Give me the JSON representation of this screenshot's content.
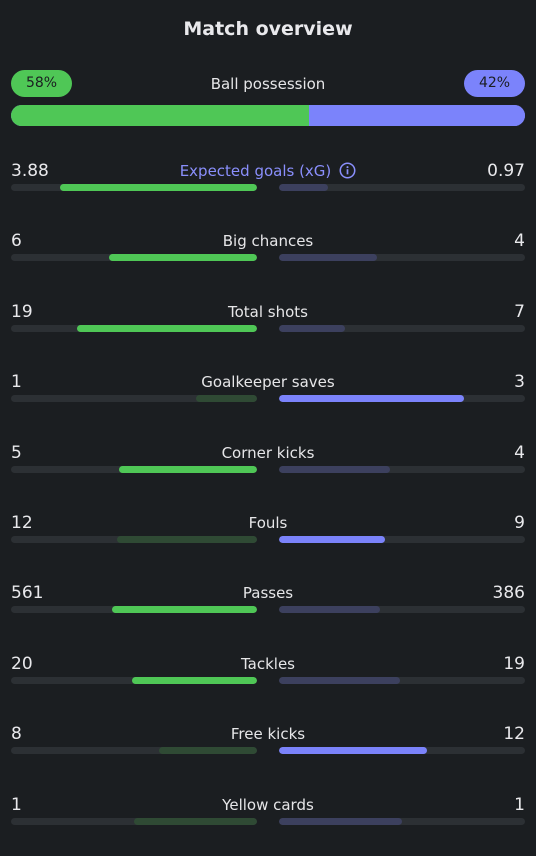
{
  "title": "Match overview",
  "colors": {
    "home": "#4fc756",
    "home_muted": "#2f4a34",
    "away": "#7b83fb",
    "away_muted": "#3c405e",
    "background": "#1b1e21",
    "track": "#2c3034"
  },
  "possession": {
    "label": "Ball possession",
    "home": "58%",
    "away": "42%",
    "home_pct": 58
  },
  "stats": [
    {
      "label": "Expected goals (xG)",
      "home": "3.88",
      "away": "0.97",
      "home_frac": 0.8,
      "away_frac": 0.2,
      "leader": "home",
      "info": true
    },
    {
      "label": "Big chances",
      "home": "6",
      "away": "4",
      "home_frac": 0.6,
      "away_frac": 0.4,
      "leader": "home"
    },
    {
      "label": "Total shots",
      "home": "19",
      "away": "7",
      "home_frac": 0.73,
      "away_frac": 0.27,
      "leader": "home"
    },
    {
      "label": "Goalkeeper saves",
      "home": "1",
      "away": "3",
      "home_frac": 0.25,
      "away_frac": 0.75,
      "leader": "away"
    },
    {
      "label": "Corner kicks",
      "home": "5",
      "away": "4",
      "home_frac": 0.56,
      "away_frac": 0.45,
      "leader": "home"
    },
    {
      "label": "Fouls",
      "home": "12",
      "away": "9",
      "home_frac": 0.57,
      "away_frac": 0.43,
      "leader": "away"
    },
    {
      "label": "Passes",
      "home": "561",
      "away": "386",
      "home_frac": 0.59,
      "away_frac": 0.41,
      "leader": "home"
    },
    {
      "label": "Tackles",
      "home": "20",
      "away": "19",
      "home_frac": 0.51,
      "away_frac": 0.49,
      "leader": "home"
    },
    {
      "label": "Free kicks",
      "home": "8",
      "away": "12",
      "home_frac": 0.4,
      "away_frac": 0.6,
      "leader": "away"
    },
    {
      "label": "Yellow cards",
      "home": "1",
      "away": "1",
      "home_frac": 0.5,
      "away_frac": 0.5,
      "leader": "none"
    }
  ]
}
